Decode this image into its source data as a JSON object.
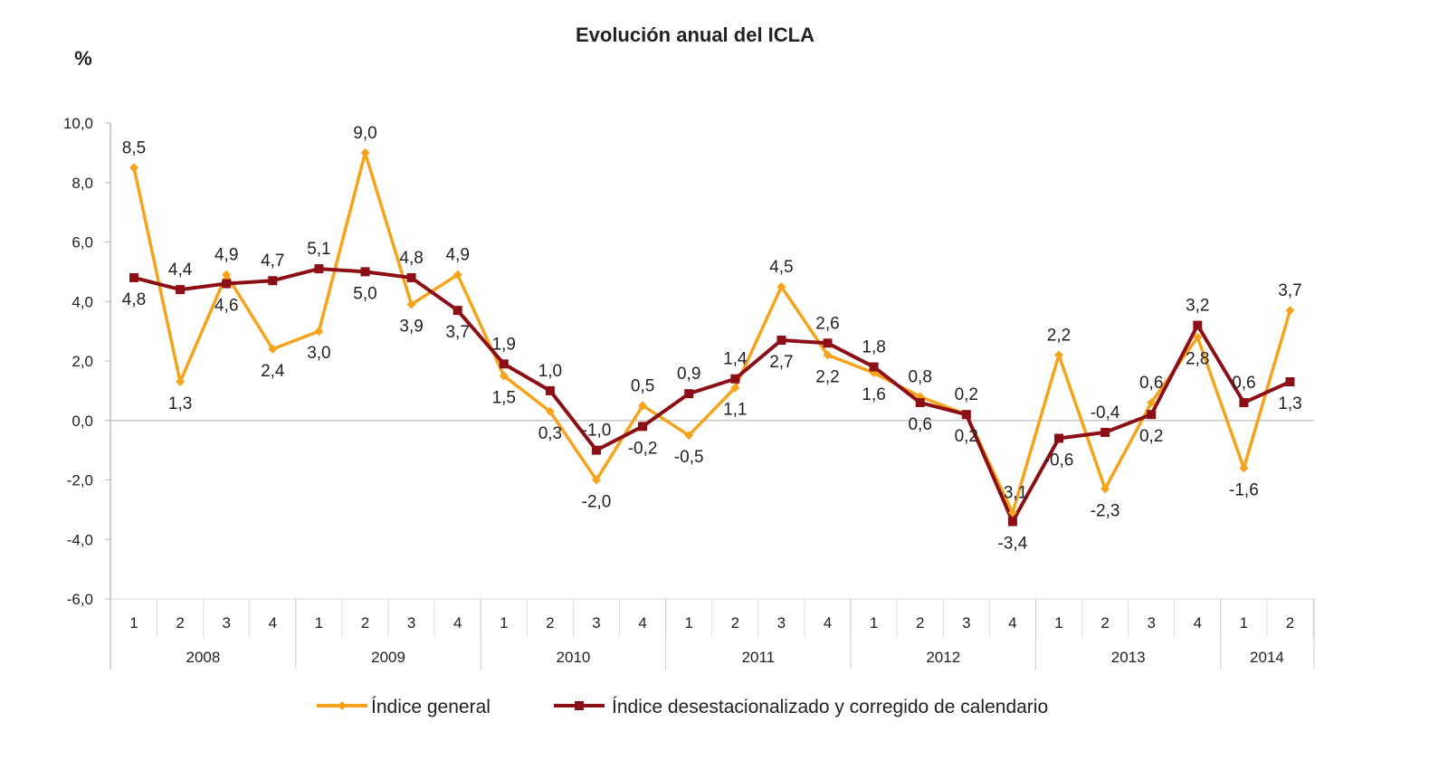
{
  "chart_data": {
    "type": "line",
    "title": "Evolución anual del ICLA",
    "ylabel": "%",
    "ylim": [
      -6,
      10
    ],
    "yticks": [
      "10,0",
      "8,0",
      "6,0",
      "4,0",
      "2,0",
      "0,0",
      "-2,0",
      "-4,0",
      "-6,0"
    ],
    "ytick_values": [
      10,
      8,
      6,
      4,
      2,
      0,
      -2,
      -4,
      -6
    ],
    "quarters": [
      "1",
      "2",
      "3",
      "4",
      "1",
      "2",
      "3",
      "4",
      "1",
      "2",
      "3",
      "4",
      "1",
      "2",
      "3",
      "4",
      "1",
      "2",
      "3",
      "4",
      "1",
      "2",
      "3",
      "4",
      "1",
      "2"
    ],
    "years": [
      {
        "label": "2008",
        "count": 4
      },
      {
        "label": "2009",
        "count": 4
      },
      {
        "label": "2010",
        "count": 4
      },
      {
        "label": "2011",
        "count": 4
      },
      {
        "label": "2012",
        "count": 4
      },
      {
        "label": "2013",
        "count": 4
      },
      {
        "label": "2014",
        "count": 2
      }
    ],
    "legend_position": "bottom",
    "grid": false,
    "series": [
      {
        "name": "Índice general",
        "color": "#f5a31a",
        "marker": "diamond",
        "values": [
          8.5,
          1.3,
          4.9,
          2.4,
          3.0,
          9.0,
          3.9,
          4.9,
          1.5,
          0.3,
          -2.0,
          0.5,
          -0.5,
          1.1,
          4.5,
          2.2,
          1.6,
          0.8,
          0.2,
          -3.1,
          2.2,
          -2.3,
          0.6,
          2.8,
          -1.6,
          3.7
        ]
      },
      {
        "name": "Índice desestacionalizado y corregido de calendario",
        "color": "#8b0f14",
        "marker": "square",
        "values": [
          4.8,
          4.4,
          4.6,
          4.7,
          5.1,
          5.0,
          4.8,
          3.7,
          1.9,
          1.0,
          -1.0,
          -0.2,
          0.9,
          1.4,
          2.7,
          2.6,
          1.8,
          0.6,
          0.2,
          -3.4,
          -0.6,
          -0.4,
          0.2,
          3.2,
          0.6,
          1.3
        ]
      }
    ]
  }
}
